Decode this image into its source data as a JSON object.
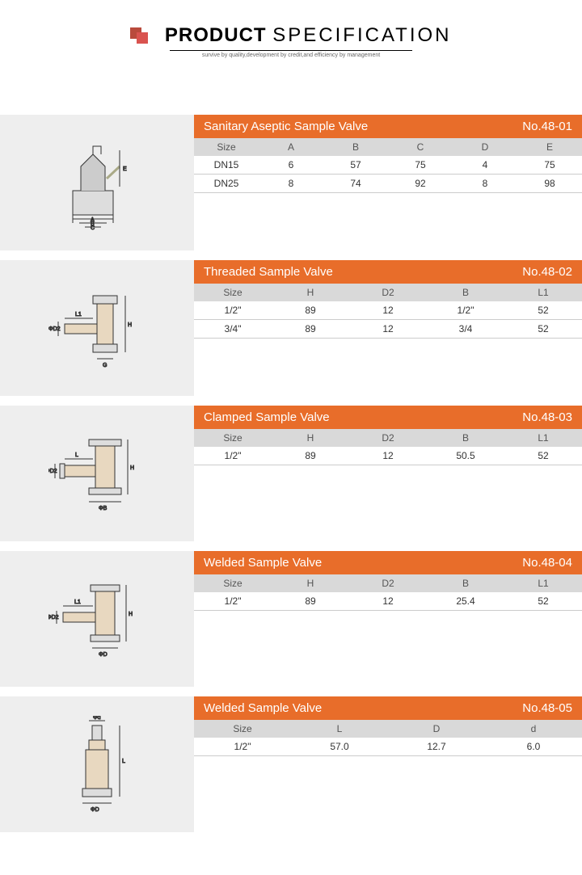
{
  "header": {
    "title1": "PRODUCT",
    "title2": "SPECIFICATION",
    "subtitle": "survive by quality,development by credit,and efficiency by management"
  },
  "specs": [
    {
      "title": "Sanitary Aseptic Sample Valve",
      "number": "No.48-01",
      "columns": [
        "Size",
        "A",
        "B",
        "C",
        "D",
        "E"
      ],
      "rows": [
        [
          "DN15",
          "6",
          "57",
          "75",
          "4",
          "75"
        ],
        [
          "DN25",
          "8",
          "74",
          "92",
          "8",
          "98"
        ]
      ],
      "diagram_labels": [
        "A",
        "B",
        "C",
        "E"
      ]
    },
    {
      "title": "Threaded Sample Valve",
      "number": "No.48-02",
      "columns": [
        "Size",
        "H",
        "D2",
        "B",
        "L1"
      ],
      "rows": [
        [
          "1/2\"",
          "89",
          "12",
          "1/2\"",
          "52"
        ],
        [
          "3/4\"",
          "89",
          "12",
          "3/4",
          "52"
        ]
      ],
      "diagram_labels": [
        "L1",
        "ΦD2",
        "H",
        "G"
      ]
    },
    {
      "title": "Clamped Sample Valve",
      "number": "No.48-03",
      "columns": [
        "Size",
        "H",
        "D2",
        "B",
        "L1"
      ],
      "rows": [
        [
          "1/2\"",
          "89",
          "12",
          "50.5",
          "52"
        ]
      ],
      "diagram_labels": [
        "L",
        "ΦD2",
        "H",
        "ΦB"
      ]
    },
    {
      "title": "Welded Sample Valve",
      "number": "No.48-04",
      "columns": [
        "Size",
        "H",
        "D2",
        "B",
        "L1"
      ],
      "rows": [
        [
          "1/2\"",
          "89",
          "12",
          "25.4",
          "52"
        ]
      ],
      "diagram_labels": [
        "L1",
        "ΦD2",
        "H",
        "ΦD"
      ]
    },
    {
      "title": "Welded Sample Valve",
      "number": "No.48-05",
      "columns": [
        "Size",
        "L",
        "D",
        "d"
      ],
      "rows": [
        [
          "1/2\"",
          "57.0",
          "12.7",
          "6.0"
        ]
      ],
      "diagram_labels": [
        "Φd",
        "L",
        "ΦD"
      ]
    }
  ],
  "colors": {
    "header_bg": "#e86d2a",
    "subhead_bg": "#d9d9d9",
    "diagram_bg": "#eeeeee",
    "logo_dark": "#b94a3c",
    "logo_light": "#d9534f"
  }
}
